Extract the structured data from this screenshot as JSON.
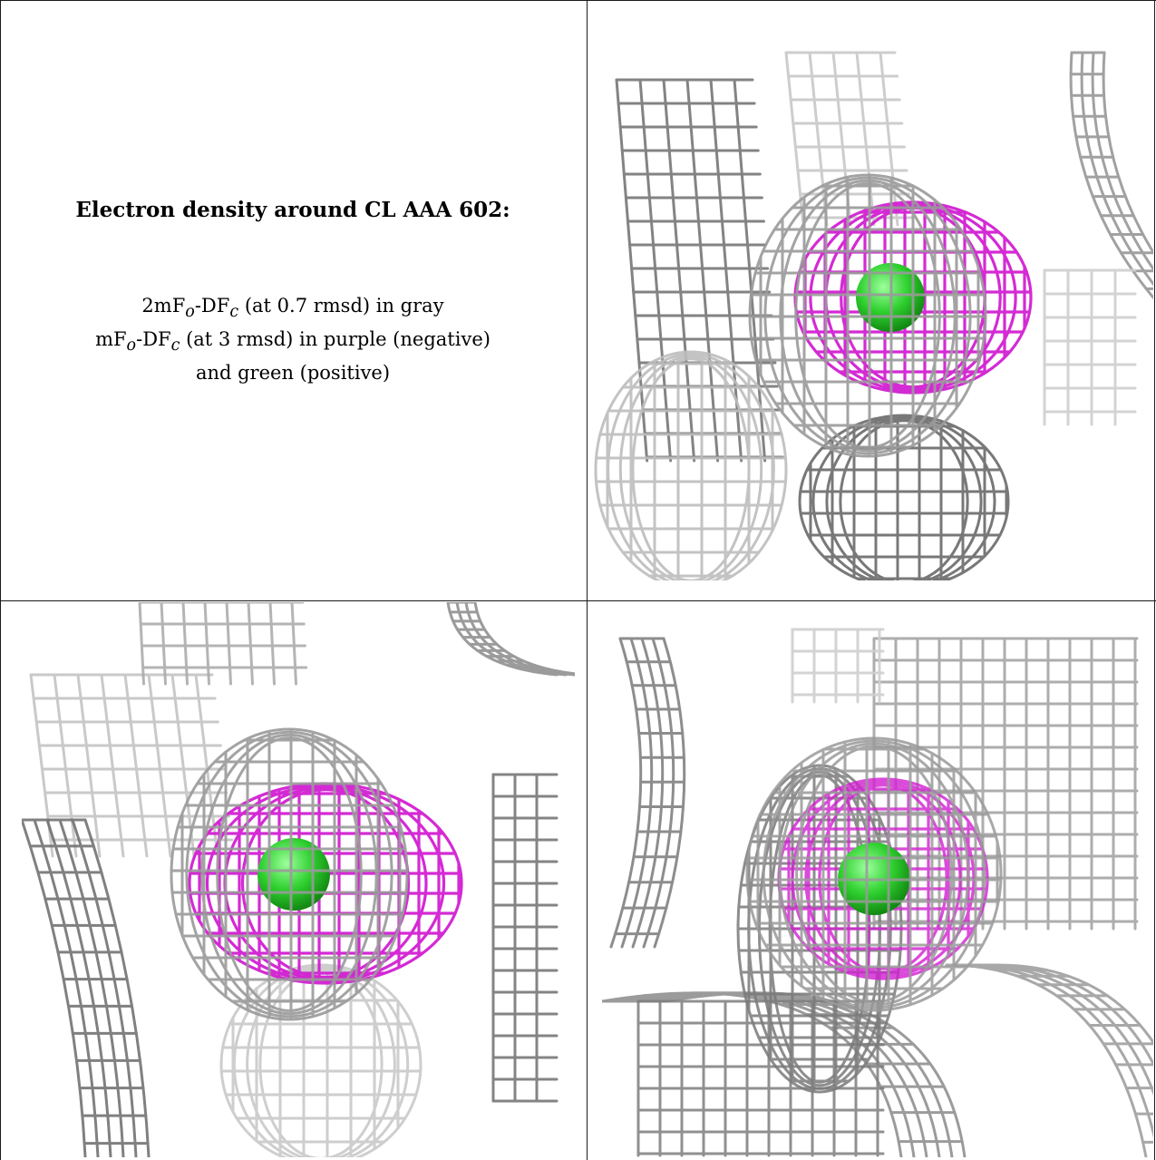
{
  "caption": {
    "title": "Electron density around CL AAA 602:",
    "line1": {
      "pre": "2mF",
      "sub1": "o",
      "mid": "-DF",
      "sub2": "c",
      "post": " (at 0.7 rmsd) in gray"
    },
    "line2": {
      "pre": "mF",
      "sub1": "o",
      "mid": "-DF",
      "sub2": "c",
      "post": " (at 3 rmsd) in purple (negative)"
    },
    "line3": "and green (positive)"
  },
  "colors": {
    "map_2fofc": "#9a9a9a",
    "map_fofc_negative": "#d21fd2",
    "map_fofc_positive": "#2fd02f",
    "border": "#1a1a1a"
  },
  "panels": [
    {
      "name": "view-1"
    },
    {
      "name": "view-2"
    },
    {
      "name": "view-3"
    }
  ]
}
